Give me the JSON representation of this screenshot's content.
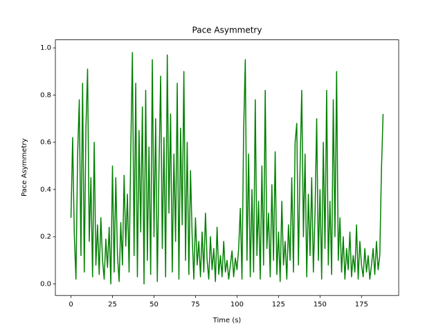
{
  "chart_data": {
    "type": "line",
    "title": "Pace Asymmetry",
    "xlabel": "Time (s)",
    "ylabel": "Pace Asymmetry",
    "x": [
      0,
      1,
      2,
      3,
      4,
      5,
      6,
      7,
      8,
      9,
      10,
      11,
      12,
      13,
      14,
      15,
      16,
      17,
      18,
      19,
      20,
      21,
      22,
      23,
      24,
      25,
      26,
      27,
      28,
      29,
      30,
      31,
      32,
      33,
      34,
      35,
      36,
      37,
      38,
      39,
      40,
      41,
      42,
      43,
      44,
      45,
      46,
      47,
      48,
      49,
      50,
      51,
      52,
      53,
      54,
      55,
      56,
      57,
      58,
      59,
      60,
      61,
      62,
      63,
      64,
      65,
      66,
      67,
      68,
      69,
      70,
      71,
      72,
      73,
      74,
      75,
      76,
      77,
      78,
      79,
      80,
      81,
      82,
      83,
      84,
      85,
      86,
      87,
      88,
      89,
      90,
      91,
      92,
      93,
      94,
      95,
      96,
      97,
      98,
      99,
      100,
      101,
      102,
      103,
      104,
      105,
      106,
      107,
      108,
      109,
      110,
      111,
      112,
      113,
      114,
      115,
      116,
      117,
      118,
      119,
      120,
      121,
      122,
      123,
      124,
      125,
      126,
      127,
      128,
      129,
      130,
      131,
      132,
      133,
      134,
      135,
      136,
      137,
      138,
      139,
      140,
      141,
      142,
      143,
      144,
      145,
      146,
      147,
      148,
      149,
      150,
      151,
      152,
      153,
      154,
      155,
      156,
      157,
      158,
      159,
      160,
      161,
      162,
      163,
      164,
      165,
      166,
      167,
      168,
      169,
      170,
      171,
      172,
      173,
      174,
      175,
      176,
      177,
      178,
      179,
      180,
      181,
      182,
      183,
      184,
      185,
      186,
      187,
      188
    ],
    "series": [
      {
        "color": "#008000",
        "values": [
          0.28,
          0.62,
          0.21,
          0.02,
          0.55,
          0.78,
          0.12,
          0.85,
          0.05,
          0.66,
          0.91,
          0.18,
          0.45,
          0.03,
          0.6,
          0.08,
          0.25,
          0.04,
          0.28,
          0.1,
          0.02,
          0.19,
          0.07,
          0.24,
          0.0,
          0.5,
          0.05,
          0.45,
          0.12,
          0.01,
          0.26,
          0.08,
          0.46,
          0.16,
          0.38,
          0.05,
          0.56,
          0.98,
          0.12,
          0.85,
          0.03,
          0.65,
          0.22,
          0.75,
          0.0,
          0.82,
          0.1,
          0.58,
          0.04,
          0.95,
          0.2,
          0.7,
          0.01,
          0.48,
          0.88,
          0.15,
          0.62,
          0.03,
          0.97,
          0.3,
          0.72,
          0.05,
          0.55,
          0.18,
          0.85,
          0.02,
          0.66,
          0.25,
          0.9,
          0.1,
          0.6,
          0.04,
          0.48,
          0.2,
          0.02,
          0.28,
          0.08,
          0.18,
          0.03,
          0.22,
          0.05,
          0.3,
          0.1,
          0.02,
          0.2,
          0.06,
          0.15,
          0.01,
          0.24,
          0.04,
          0.12,
          0.03,
          0.18,
          0.05,
          0.1,
          0.02,
          0.08,
          0.14,
          0.03,
          0.11,
          0.06,
          0.15,
          0.32,
          0.02,
          0.65,
          0.95,
          0.1,
          0.55,
          0.03,
          0.4,
          0.05,
          0.78,
          0.12,
          0.35,
          0.02,
          0.5,
          0.08,
          0.82,
          0.15,
          0.3,
          0.03,
          0.42,
          0.1,
          0.56,
          0.04,
          0.22,
          0.01,
          0.35,
          0.08,
          0.18,
          0.02,
          0.25,
          0.1,
          0.45,
          0.05,
          0.6,
          0.68,
          0.08,
          0.5,
          0.82,
          0.2,
          0.55,
          0.03,
          0.38,
          0.12,
          0.45,
          0.05,
          0.3,
          0.7,
          0.1,
          0.4,
          0.02,
          0.6,
          0.15,
          0.82,
          0.08,
          0.35,
          0.04,
          0.78,
          0.2,
          0.9,
          0.1,
          0.28,
          0.05,
          0.2,
          0.02,
          0.15,
          0.06,
          0.22,
          0.03,
          0.12,
          0.05,
          0.25,
          0.02,
          0.18,
          0.08,
          0.03,
          0.15,
          0.05,
          0.12,
          0.02,
          0.08,
          0.15,
          0.04,
          0.18,
          0.06,
          0.12,
          0.48,
          0.72
        ]
      }
    ],
    "xlim": [
      -9.4,
      197.4
    ],
    "ylim": [
      -0.049,
      1.034
    ],
    "xticks": [
      0,
      25,
      50,
      75,
      100,
      125,
      150,
      175
    ],
    "yticks": [
      {
        "value": 0,
        "label": "0.0"
      },
      {
        "value": 0.2,
        "label": "0.2"
      },
      {
        "value": 0.4,
        "label": "0.4"
      },
      {
        "value": 0.6,
        "label": "0.6"
      },
      {
        "value": 0.8,
        "label": "0.8"
      },
      {
        "value": 1,
        "label": "1.0"
      }
    ]
  }
}
